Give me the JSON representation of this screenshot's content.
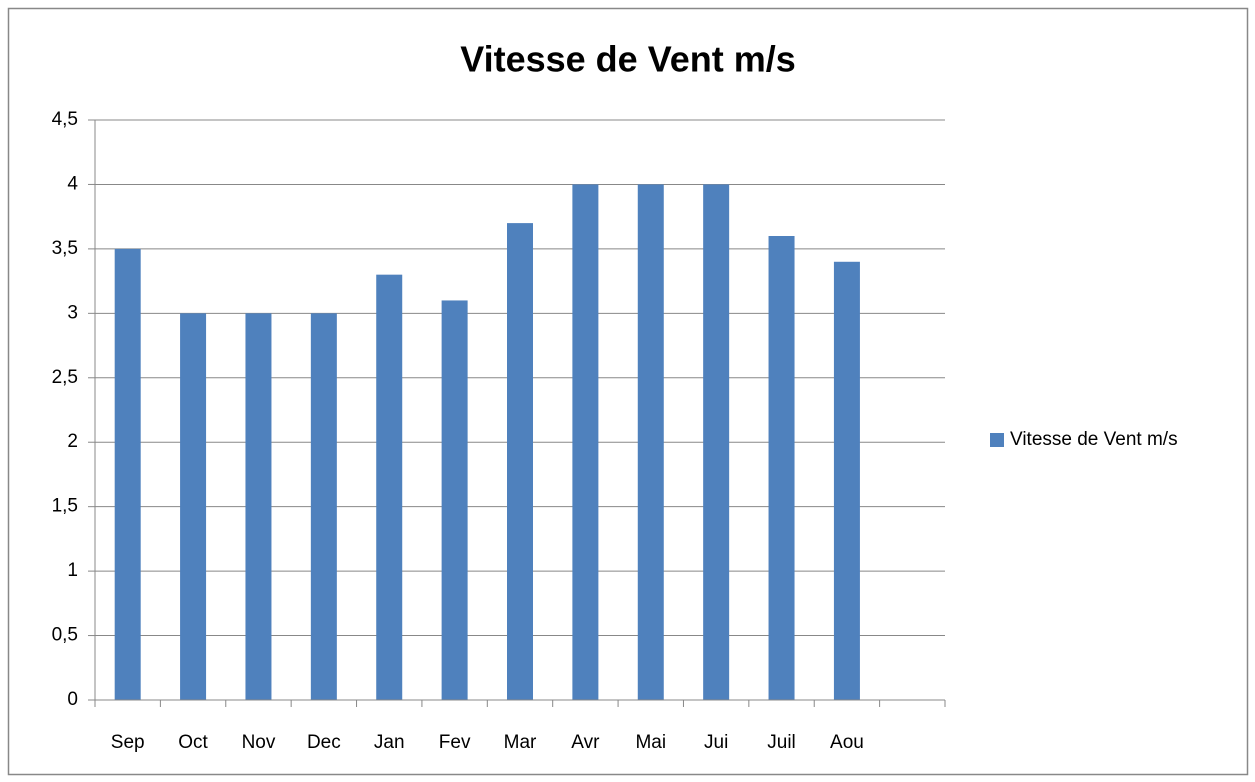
{
  "chart_data": {
    "type": "bar",
    "title": "Vitesse de Vent m/s",
    "categories": [
      "Sep",
      "Oct",
      "Nov",
      "Dec",
      "Jan",
      "Fev",
      "Mar",
      "Avr",
      "Mai",
      "Jui",
      "Juil",
      "Aou",
      null
    ],
    "series": [
      {
        "name": "Vitesse de Vent m/s",
        "color": "#4f81bd",
        "values": [
          3.5,
          3,
          3,
          3,
          3.3,
          3.1,
          3.7,
          4,
          4,
          4,
          3.6,
          3.4,
          null
        ]
      }
    ],
    "ylim": [
      0,
      4.5
    ],
    "yticks": [
      0,
      {
        "value": 0.5,
        "label": "0,5"
      },
      1,
      {
        "value": 1.5,
        "label": "1,5"
      },
      2,
      {
        "value": 2.5,
        "label": "2,5"
      },
      3,
      {
        "value": 3.5,
        "label": "3,5"
      },
      4,
      {
        "value": 4.5,
        "label": "4,5"
      }
    ],
    "grid": true,
    "legend": "right"
  }
}
